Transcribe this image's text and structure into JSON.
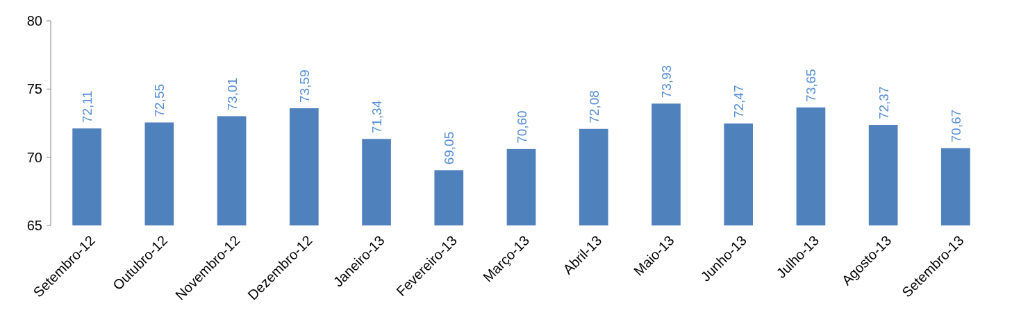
{
  "chart_data": {
    "type": "bar",
    "categories": [
      "Setembro-12",
      "Outubro-12",
      "Novembro-12",
      "Dezembro-12",
      "Janeiro-13",
      "Fevereiro-13",
      "Março-13",
      "Abril-13",
      "Maio-13",
      "Junho-13",
      "Julho-13",
      "Agosto-13",
      "Setembro-13"
    ],
    "values": [
      72.11,
      72.55,
      73.01,
      73.59,
      71.34,
      69.05,
      70.6,
      72.08,
      73.93,
      72.47,
      73.65,
      72.37,
      70.67
    ],
    "value_labels": [
      "72,11",
      "72,55",
      "73,01",
      "73,59",
      "71,34",
      "69,05",
      "70,60",
      "72,08",
      "73,93",
      "72,47",
      "73,65",
      "72,37",
      "70,67"
    ],
    "color": "#4f81bd",
    "ylim": [
      65,
      80
    ],
    "yticks": [
      65,
      70,
      75,
      80
    ],
    "grid": false
  }
}
